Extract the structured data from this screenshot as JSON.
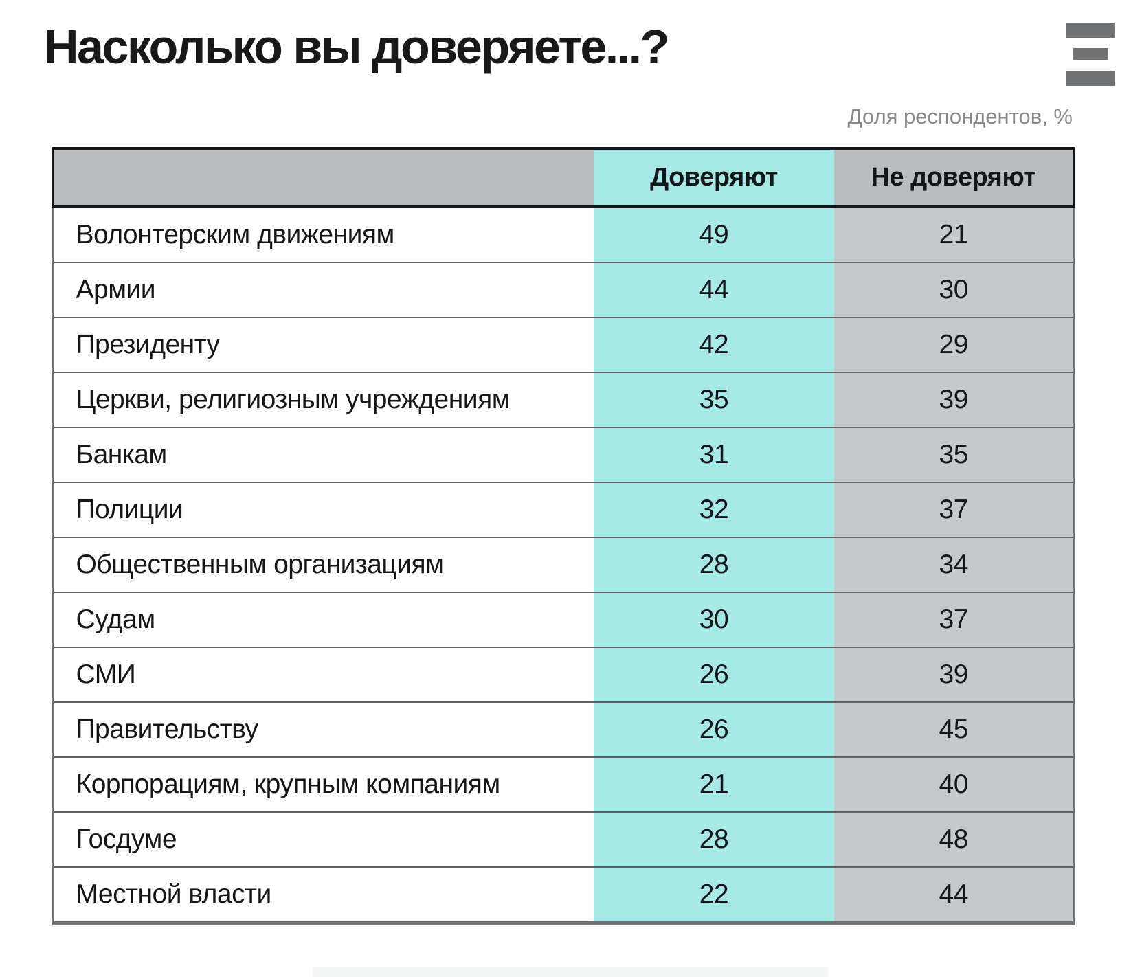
{
  "title": "Насколько вы доверяете...?",
  "subtitle": "Доля респондентов, %",
  "table": {
    "columns": [
      "Доверяют",
      "Не доверяют"
    ],
    "rows": [
      {
        "label": "Волонтерским движениям",
        "trust": "49",
        "distrust": "21"
      },
      {
        "label": "Армии",
        "trust": "44",
        "distrust": "30"
      },
      {
        "label": "Президенту",
        "trust": "42",
        "distrust": "29"
      },
      {
        "label": "Церкви, религиозным учреждениям",
        "trust": "35",
        "distrust": "39"
      },
      {
        "label": "Банкам",
        "trust": "31",
        "distrust": "35"
      },
      {
        "label": "Полиции",
        "trust": "32",
        "distrust": "37"
      },
      {
        "label": "Общественным организациям",
        "trust": "28",
        "distrust": "34"
      },
      {
        "label": "Судам",
        "trust": "30",
        "distrust": "37"
      },
      {
        "label": "СМИ",
        "trust": "26",
        "distrust": "39"
      },
      {
        "label": "Правительству",
        "trust": "26",
        "distrust": "45"
      },
      {
        "label": "Корпорациям, крупным компаниям",
        "trust": "21",
        "distrust": "40"
      },
      {
        "label": "Госдуме",
        "trust": "28",
        "distrust": "48"
      },
      {
        "label": "Местной власти",
        "trust": "22",
        "distrust": "44"
      }
    ]
  },
  "icons": {
    "brand_logo": "three-horizontal-bars"
  },
  "colors": {
    "trust_column": "#a7e9e7",
    "distrust_column": "#c6c9cb",
    "header_gray": "#babdbf",
    "logo_gray": "#6f7376",
    "subtitle_gray": "#85898c",
    "text_black": "#141618"
  },
  "chart_data": {
    "type": "table",
    "title": "Насколько вы доверяете...?",
    "subtitle": "Доля респондентов, %",
    "categories": [
      "Волонтерским движениям",
      "Армии",
      "Президенту",
      "Церкви, религиозным учреждениям",
      "Банкам",
      "Полиции",
      "Общественным организациям",
      "Судам",
      "СМИ",
      "Правительству",
      "Корпорациям, крупным компаниям",
      "Госдуме",
      "Местной власти"
    ],
    "series": [
      {
        "name": "Доверяют",
        "values": [
          49,
          44,
          42,
          35,
          31,
          32,
          28,
          30,
          26,
          26,
          21,
          28,
          22
        ]
      },
      {
        "name": "Не доверяют",
        "values": [
          21,
          30,
          29,
          39,
          35,
          37,
          34,
          37,
          39,
          45,
          40,
          48,
          44
        ]
      }
    ],
    "units": "% респондентов",
    "layout": "two value columns highlighted: trust column cyan, distrust column gray"
  }
}
